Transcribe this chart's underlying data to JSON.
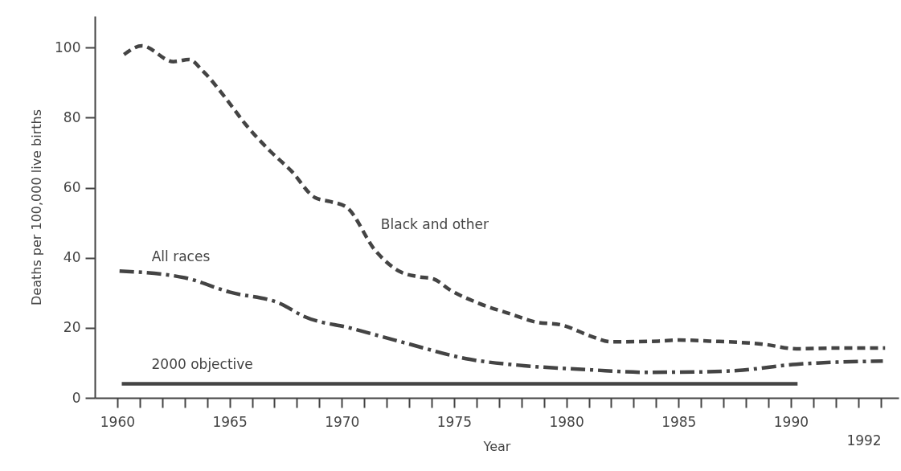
{
  "chart_data": {
    "type": "line",
    "xlabel": "Year",
    "ylabel": "Deaths per 100,000 live births",
    "xlim": [
      1959,
      1994.8
    ],
    "ylim": [
      0,
      109
    ],
    "xticks": [
      1960,
      {
        "value": 1961,
        "label": null
      },
      {
        "value": 1962,
        "label": null
      },
      {
        "value": 1963,
        "label": null
      },
      {
        "value": 1964,
        "label": null
      },
      1965,
      {
        "value": 1966,
        "label": null
      },
      {
        "value": 1967,
        "label": null
      },
      {
        "value": 1968,
        "label": null
      },
      {
        "value": 1969,
        "label": null
      },
      1970,
      {
        "value": 1971,
        "label": null
      },
      {
        "value": 1972,
        "label": null
      },
      {
        "value": 1973,
        "label": null
      },
      {
        "value": 1974,
        "label": null
      },
      1975,
      {
        "value": 1976,
        "label": null
      },
      {
        "value": 1977,
        "label": null
      },
      {
        "value": 1978,
        "label": null
      },
      {
        "value": 1979,
        "label": null
      },
      1980,
      {
        "value": 1981,
        "label": null
      },
      {
        "value": 1982,
        "label": null
      },
      {
        "value": 1983,
        "label": null
      },
      {
        "value": 1984,
        "label": null
      },
      1985,
      {
        "value": 1986,
        "label": null
      },
      {
        "value": 1987,
        "label": null
      },
      {
        "value": 1988,
        "label": null
      },
      {
        "value": 1989,
        "label": null
      },
      1990,
      {
        "value": 1991,
        "label": null
      },
      {
        "value": 1992,
        "label": null
      },
      {
        "value": 1993,
        "label": null
      },
      {
        "value": 1994,
        "label": null
      }
    ],
    "yticks": [
      0,
      20,
      40,
      60,
      80,
      100
    ],
    "grid": false,
    "legend": false,
    "marker": "none",
    "series": [
      {
        "name": "Black and other",
        "color": "#444444",
        "line_style": "dashed",
        "x": [
          1960.3,
          1961.1,
          1962.5,
          1963.2,
          1963.8,
          1964.8,
          1965.7,
          1966.8,
          1967.75,
          1968.8,
          1969.5,
          1970.2,
          1971.5,
          1972.6,
          1973.4,
          1974.1,
          1974.8,
          1976.1,
          1977.5,
          1978.6,
          1979.8,
          1981.1,
          1982.0,
          1984.1,
          1985.0,
          1986.4,
          1988.8,
          1990.25,
          1991.8,
          1994.2
        ],
        "values": [
          98,
          100.5,
          96,
          96.6,
          93.4,
          85.8,
          78.2,
          70.5,
          64.8,
          57.2,
          56,
          54.5,
          42,
          36,
          34.6,
          33.9,
          30.9,
          27,
          24,
          21.7,
          20.8,
          17.6,
          16,
          16.2,
          16.5,
          16.2,
          15.3,
          14,
          14.2,
          14.2
        ]
      },
      {
        "name": "All races",
        "color": "#444444",
        "line_style": "dashdot",
        "x": [
          1960.1,
          1963,
          1965,
          1967.3,
          1968.3,
          1970.4,
          1972.75,
          1975.7,
          1978.1,
          1981.1,
          1983.5,
          1985.8,
          1987.6,
          1990.25,
          1994.1
        ],
        "values": [
          36.2,
          34.3,
          30.2,
          26.8,
          23.3,
          19.9,
          15.8,
          11,
          9.2,
          8,
          7.3,
          7.4,
          7.8,
          9.6,
          10.5
        ]
      },
      {
        "name": "2000 objective",
        "color": "#444444",
        "line_style": "solid",
        "x": [
          1960.2,
          1990.3
        ],
        "values": [
          4,
          4
        ]
      }
    ],
    "annotations": [
      "1992"
    ]
  }
}
